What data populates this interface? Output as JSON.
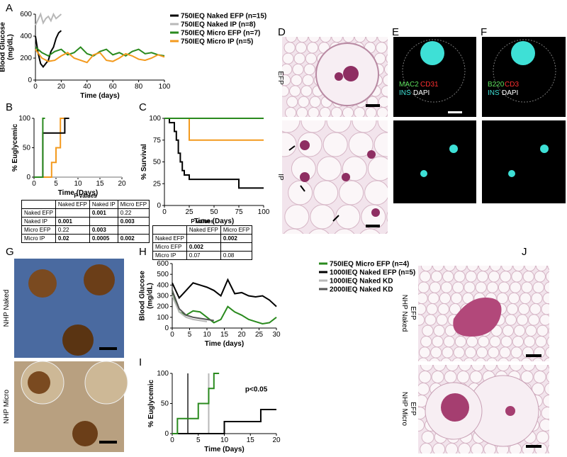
{
  "panel_labels": [
    "A",
    "B",
    "C",
    "D",
    "E",
    "F",
    "G",
    "H",
    "I",
    "J"
  ],
  "chart_data": [
    {
      "type": "line",
      "xlabel": "Time (days)",
      "ylabel": [
        "Blood Glucose",
        "(mg/dL)"
      ],
      "xlim": [
        0,
        100
      ],
      "ylim": [
        0,
        600
      ],
      "xticks": [
        0,
        20,
        40,
        60,
        80,
        100
      ],
      "yticks": [
        0,
        200,
        400,
        600
      ],
      "series": [
        {
          "name": "750IEQ Naked EFP (n=15)",
          "color": "#000000",
          "x": [
            0,
            2,
            4,
            6,
            8,
            10,
            12,
            14,
            16,
            18,
            20
          ],
          "values": [
            400,
            250,
            150,
            120,
            150,
            180,
            260,
            300,
            380,
            430,
            450
          ]
        },
        {
          "name": "750IEQ Naked IP (n=8)",
          "color": "#b8b8b8",
          "x": [
            0,
            2,
            4,
            6,
            8,
            10,
            12,
            14,
            16,
            18,
            20
          ],
          "values": [
            500,
            550,
            600,
            520,
            560,
            580,
            540,
            600,
            560,
            580,
            600
          ]
        },
        {
          "name": "750IEQ Micro EFP (n=7)",
          "color": "#2a8a1e",
          "x": [
            0,
            5,
            10,
            15,
            20,
            25,
            30,
            35,
            40,
            45,
            50,
            55,
            60,
            65,
            70,
            75,
            80,
            85,
            90,
            95,
            100
          ],
          "values": [
            300,
            250,
            220,
            260,
            280,
            230,
            250,
            300,
            240,
            220,
            260,
            280,
            230,
            250,
            220,
            260,
            280,
            240,
            250,
            230,
            220
          ]
        },
        {
          "name": "750IEQ Micro IP (n=5)",
          "color": "#f39a1e",
          "x": [
            0,
            5,
            10,
            15,
            20,
            25,
            30,
            35,
            40,
            45,
            50,
            55,
            60,
            65,
            70,
            75,
            80,
            85,
            90,
            95,
            100
          ],
          "values": [
            280,
            200,
            170,
            180,
            220,
            250,
            200,
            180,
            160,
            230,
            250,
            180,
            170,
            200,
            240,
            220,
            190,
            180,
            200,
            230,
            210
          ]
        }
      ]
    },
    {
      "type": "step",
      "xlabel": "Time (Days)",
      "ylabel": [
        "% Euglycemic"
      ],
      "xlim": [
        0,
        20
      ],
      "ylim": [
        0,
        100
      ],
      "xticks": [
        0,
        5,
        10,
        15,
        20
      ],
      "yticks": [
        0,
        50,
        100
      ],
      "series": [
        {
          "color": "#b8b8b8",
          "x": [
            0,
            20
          ],
          "values": [
            0,
            0
          ]
        },
        {
          "color": "#f39a1e",
          "x": [
            0,
            4,
            5,
            6,
            7
          ],
          "values": [
            0,
            25,
            50,
            100,
            100
          ]
        },
        {
          "color": "#000000",
          "x": [
            0,
            2,
            7,
            8
          ],
          "values": [
            0,
            75,
            100,
            100
          ]
        },
        {
          "color": "#2a8a1e",
          "x": [
            0,
            2,
            2.5
          ],
          "values": [
            0,
            100,
            100
          ]
        }
      ]
    },
    {
      "type": "step",
      "xlabel": "Time (Days)",
      "ylabel": [
        "% Survival"
      ],
      "xlim": [
        0,
        100
      ],
      "ylim": [
        0,
        100
      ],
      "xticks": [
        0,
        25,
        50,
        75,
        100
      ],
      "yticks": [
        0,
        25,
        50,
        75,
        100
      ],
      "series": [
        {
          "color": "#f39a1e",
          "x": [
            0,
            25,
            100
          ],
          "values": [
            100,
            75,
            75
          ]
        },
        {
          "color": "#000000",
          "x": [
            0,
            5,
            10,
            12,
            14,
            16,
            18,
            20,
            25,
            40,
            75,
            100
          ],
          "values": [
            100,
            95,
            85,
            75,
            60,
            50,
            40,
            35,
            30,
            30,
            20,
            20
          ]
        },
        {
          "color": "#2a8a1e",
          "x": [
            0,
            100
          ],
          "values": [
            100,
            100
          ]
        }
      ]
    },
    {
      "type": "line",
      "xlabel": "Time (days)",
      "ylabel": [
        "Blood Glucose",
        "(mg/dL)"
      ],
      "xlim": [
        0,
        30
      ],
      "ylim": [
        0,
        600
      ],
      "xticks": [
        0,
        5,
        10,
        15,
        20,
        25,
        30
      ],
      "yticks": [
        0,
        100,
        200,
        300,
        400,
        500,
        600
      ],
      "series": [
        {
          "name": "750IEQ Micro EFP (n=4)",
          "color": "#2a8a1e",
          "x": [
            0,
            2,
            4,
            6,
            8,
            10,
            12,
            14,
            16,
            18,
            20,
            22,
            24,
            26,
            28,
            30
          ],
          "values": [
            350,
            150,
            120,
            160,
            150,
            100,
            50,
            80,
            200,
            150,
            120,
            80,
            60,
            40,
            50,
            100
          ]
        },
        {
          "name": "1000IEQ Naked EFP (n=5)",
          "color": "#000000",
          "x": [
            0,
            2,
            4,
            6,
            8,
            10,
            12,
            14,
            16,
            18,
            20,
            22,
            24,
            26,
            28,
            30
          ],
          "values": [
            420,
            280,
            350,
            420,
            400,
            380,
            350,
            300,
            450,
            320,
            330,
            300,
            290,
            300,
            260,
            200
          ]
        },
        {
          "name": "1000IEQ Naked KD",
          "color": "#b8b8b8",
          "x": [
            0,
            2,
            4,
            6,
            8,
            10
          ],
          "values": [
            300,
            150,
            100,
            80,
            70,
            60
          ]
        },
        {
          "name": "2000IEQ Naked KD",
          "color": "#555555",
          "x": [
            0,
            2,
            4,
            6,
            8,
            10,
            12
          ],
          "values": [
            350,
            180,
            120,
            100,
            90,
            80,
            70
          ]
        }
      ]
    },
    {
      "type": "step",
      "xlabel": "Time (Days)",
      "ylabel": [
        "% Euglycemic"
      ],
      "xlim": [
        0,
        20
      ],
      "ylim": [
        0,
        100
      ],
      "xticks": [
        0,
        5,
        10,
        15,
        20
      ],
      "yticks": [
        0,
        50,
        100
      ],
      "annotation": "p<0.05",
      "series": [
        {
          "color": "#555555",
          "x": [
            3,
            3
          ],
          "values": [
            0,
            100
          ]
        },
        {
          "color": "#b8b8b8",
          "x": [
            7,
            7
          ],
          "values": [
            0,
            100
          ]
        },
        {
          "color": "#000000",
          "x": [
            0,
            10,
            17,
            20
          ],
          "values": [
            0,
            20,
            40,
            40
          ]
        },
        {
          "color": "#2a8a1e",
          "x": [
            0,
            1,
            5,
            7,
            8,
            9
          ],
          "values": [
            0,
            25,
            50,
            75,
            100,
            100
          ]
        }
      ]
    }
  ],
  "tables": [
    {
      "title": "P values",
      "header": [
        "Naked EFP",
        "Naked IP",
        "Micro EFP"
      ],
      "rows": [
        {
          "label": "Naked EFP",
          "cells": [
            null,
            "0.001",
            "0.22"
          ]
        },
        {
          "label": "Naked IP",
          "cells": [
            "0.001",
            null,
            "0.003"
          ]
        },
        {
          "label": "Micro EFP",
          "cells": [
            "0.22",
            "0.003",
            null
          ]
        },
        {
          "label": "Micro IP",
          "cells": [
            "0.02",
            "0.0005",
            "0.002"
          ]
        }
      ],
      "bold": [
        [
          0,
          1
        ],
        [
          1,
          0
        ],
        [
          1,
          2
        ],
        [
          2,
          1
        ],
        [
          3,
          0
        ],
        [
          3,
          1
        ],
        [
          3,
          2
        ]
      ]
    },
    {
      "title": "P values",
      "header": [
        "Naked EFP",
        "Micro EFP"
      ],
      "rows": [
        {
          "label": "Naked EFP",
          "cells": [
            null,
            "0.002"
          ]
        },
        {
          "label": "Micro EFP",
          "cells": [
            "0.002",
            null
          ]
        },
        {
          "label": "Micro IP",
          "cells": [
            "0.07",
            "0.08"
          ]
        }
      ],
      "bold": [
        [
          0,
          1
        ],
        [
          1,
          0
        ]
      ]
    }
  ],
  "D": {
    "labels": [
      "EFP",
      "IP"
    ]
  },
  "E": {
    "stains": [
      "MAC2",
      "CD31",
      "INS",
      "DAPI"
    ]
  },
  "F": {
    "stains": [
      "B220",
      "CD3",
      "INS",
      "DAPI"
    ]
  },
  "G": {
    "labels": [
      "NHP Naked",
      "NHP Micro"
    ]
  },
  "J": {
    "labels": [
      [
        "NHP Naked",
        "EFP"
      ],
      [
        "NHP Micro",
        "EFP"
      ]
    ]
  }
}
